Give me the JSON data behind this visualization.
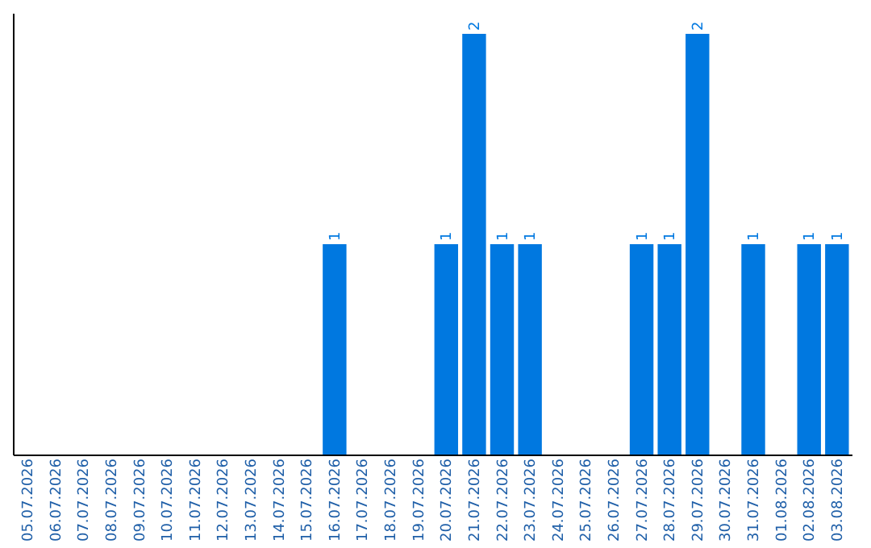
{
  "chart_data": {
    "type": "bar",
    "categories": [
      "05.07.2026",
      "06.07.2026",
      "07.07.2026",
      "08.07.2026",
      "09.07.2026",
      "10.07.2026",
      "11.07.2026",
      "12.07.2026",
      "13.07.2026",
      "14.07.2026",
      "15.07.2026",
      "16.07.2026",
      "17.07.2026",
      "18.07.2026",
      "19.07.2026",
      "20.07.2026",
      "21.07.2026",
      "22.07.2026",
      "23.07.2026",
      "24.07.2026",
      "25.07.2026",
      "26.07.2026",
      "27.07.2026",
      "28.07.2026",
      "29.07.2026",
      "30.07.2026",
      "31.07.2026",
      "01.08.2026",
      "02.08.2026",
      "03.08.2026"
    ],
    "values": [
      0,
      0,
      0,
      0,
      0,
      0,
      0,
      0,
      0,
      0,
      0,
      1,
      0,
      0,
      0,
      1,
      2,
      1,
      1,
      0,
      0,
      0,
      1,
      1,
      2,
      0,
      1,
      0,
      1,
      1
    ],
    "value_labels": [
      null,
      null,
      null,
      null,
      null,
      null,
      null,
      null,
      null,
      null,
      null,
      "1",
      null,
      null,
      null,
      "1",
      "2",
      "1",
      "1",
      null,
      null,
      null,
      "1",
      "1",
      "2",
      null,
      "1",
      null,
      "1",
      "1"
    ],
    "color": "#0078e0",
    "ylim": [
      0,
      2.1
    ],
    "grid": false,
    "tick_labels": "x"
  }
}
